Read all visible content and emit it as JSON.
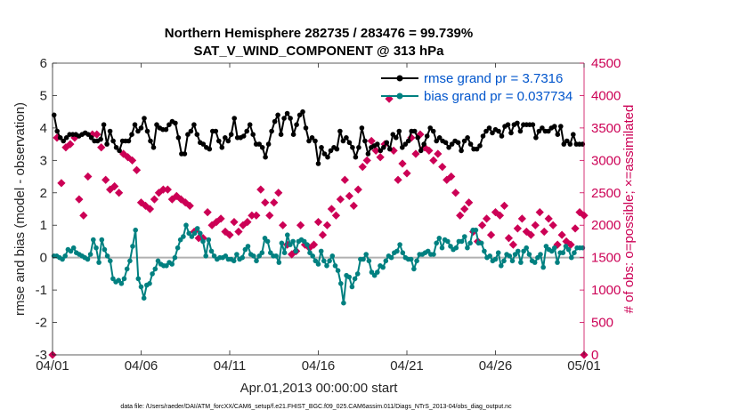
{
  "chart_data": {
    "type": "line",
    "title": "Northern Hemisphere 282735 / 283476 = 99.739%",
    "subtitle": "SAT_V_WIND_COMPONENT @ 313 hPa",
    "xlabel": "Apr.01,2013 00:00:00 start",
    "ylabel_left": "rmse and bias (model - observation)",
    "ylabel_right": "# of obs: o=possible; ×=assimilated",
    "footer": "data file: /Users/raeder/DAI/ATM_forcXX/CAM6_setup/f.e21.FHIST_BGC.f09_025.CAM6assim.011/Diags_NTrS_2013-04/obs_diag_output.nc",
    "xlim": [
      0,
      30
    ],
    "ylim_left": [
      -3,
      6
    ],
    "ylim_right": [
      0,
      4500
    ],
    "x_ticks": [
      0,
      5,
      10,
      15,
      20,
      25,
      30
    ],
    "x_tick_labels": [
      "04/01",
      "04/06",
      "04/11",
      "04/16",
      "04/21",
      "04/26",
      "05/01"
    ],
    "y_ticks_left": [
      "-3",
      "-2",
      "-1",
      "0",
      "1",
      "2",
      "3",
      "4",
      "5",
      "6"
    ],
    "y_ticks_right": [
      "0",
      "500",
      "1000",
      "1500",
      "2000",
      "2500",
      "3000",
      "3500",
      "4000",
      "4500"
    ],
    "colors": {
      "rmse": "#000000",
      "bias": "#008080",
      "obs": "#cc0055",
      "zero_line": "#b0b0b0",
      "legend_text": "#0055cc"
    },
    "legend": {
      "position": "top-right",
      "items": [
        {
          "series": "rmse",
          "label": "rmse grand pr = 3.7316"
        },
        {
          "series": "bias",
          "label": "bias grand pr = 0.037734"
        }
      ]
    },
    "series": [
      {
        "name": "rmse",
        "axis": "left",
        "values": [
          4.4,
          3.9,
          3.7,
          3.6,
          3.7,
          3.8,
          3.8,
          3.8,
          3.75,
          3.8,
          3.85,
          3.8,
          3.7,
          3.6,
          3.6,
          3.65,
          4.1,
          3.5,
          3.9,
          3.6,
          3.4,
          3.3,
          3.6,
          3.6,
          3.6,
          3.8,
          4.1,
          3.9,
          4.0,
          4.3,
          3.9,
          3.6,
          3.4,
          4.1,
          4.0,
          3.95,
          3.95,
          4.1,
          4.2,
          4.15,
          3.7,
          3.2,
          3.2,
          3.8,
          3.9,
          4.1,
          3.8,
          3.55,
          3.5,
          3.4,
          3.35,
          3.9,
          3.9,
          3.6,
          3.4,
          3.7,
          3.6,
          3.8,
          4.3,
          3.7,
          3.7,
          3.75,
          3.9,
          4.1,
          3.8,
          3.5,
          3.5,
          3.4,
          3.1,
          3.5,
          3.9,
          4.2,
          4.4,
          3.8,
          4.3,
          4.45,
          4.3,
          3.8,
          4.1,
          4.4,
          4.5,
          4.0,
          3.6,
          3.7,
          3.6,
          2.9,
          3.4,
          3.2,
          3.1,
          3.3,
          3.4,
          3.35,
          3.9,
          3.6,
          3.7,
          3.55,
          3.4,
          3.1,
          3.4,
          4.0,
          3.6,
          3.2,
          3.4,
          3.45,
          3.5,
          3.3,
          3.4,
          3.55,
          3.35,
          3.8,
          3.7,
          3.9,
          3.4,
          3.5,
          3.6,
          3.9,
          3.9,
          3.7,
          3.3,
          3.5,
          3.75,
          4.0,
          3.9,
          3.6,
          3.7,
          3.6,
          3.55,
          3.4,
          3.5,
          3.6,
          3.55,
          3.3,
          3.6,
          3.7,
          3.5,
          3.35,
          3.35,
          3.45,
          3.75,
          3.9,
          4.0,
          3.85,
          3.95,
          3.9,
          3.75,
          4.05,
          4.1,
          3.85,
          4.1,
          4.15,
          3.9,
          4.1,
          4.1,
          4.1,
          4.1,
          3.7,
          3.9,
          4.0,
          3.9,
          3.9,
          4.0,
          4.05,
          3.8,
          4.05,
          3.5,
          3.6,
          3.5,
          3.8,
          3.5,
          3.5,
          3.5
        ]
      },
      {
        "name": "bias",
        "axis": "left",
        "values": [
          0.05,
          0.05,
          0.0,
          -0.05,
          0.05,
          0.25,
          0.2,
          0.3,
          0.15,
          0.1,
          0.05,
          0.0,
          -0.05,
          0.1,
          0.55,
          0.3,
          -0.15,
          0.55,
          0.25,
          0.05,
          -0.1,
          -0.65,
          -0.75,
          -0.7,
          -0.8,
          -0.65,
          -0.35,
          -0.1,
          0.35,
          0.85,
          -0.65,
          -0.9,
          -1.25,
          -0.85,
          -0.8,
          -0.5,
          -0.35,
          -0.1,
          -0.2,
          -0.25,
          -0.25,
          -0.15,
          -0.2,
          0.0,
          0.3,
          0.55,
          0.65,
          1.0,
          0.75,
          0.65,
          0.75,
          0.9,
          0.75,
          0.5,
          0.05,
          0.55,
          0.2,
          0.05,
          -0.05,
          0.0,
          0.0,
          0.05,
          -0.05,
          -0.05,
          -0.1,
          0.1,
          -0.05,
          0.0,
          0.25,
          0.35,
          0.1,
          0.05,
          -0.1,
          0.05,
          0.15,
          0.6,
          0.5,
          0.15,
          0.05,
          0.05,
          -0.15,
          0.45,
          0.15,
          0.7,
          0.4,
          0.5,
          0.2,
          0.5,
          0.55,
          0.5,
          0.4,
          0.15,
          0.05,
          -0.1,
          -0.2,
          0.2,
          -0.1,
          -0.25,
          -0.1,
          0.05,
          -0.25,
          -0.4,
          -0.8,
          -1.4,
          -0.55,
          -0.6,
          -0.9,
          -0.65,
          -0.5,
          -0.05,
          -0.05,
          0.1,
          -0.1,
          -0.45,
          -0.55,
          -0.45,
          -0.25,
          -0.3,
          -0.1,
          0.05,
          0.0,
          0.15,
          0.2,
          0.4,
          0.15,
          0.0,
          -0.05,
          -0.05,
          -0.35,
          -0.1,
          0.1,
          0.1,
          0.15,
          0.2,
          0.1,
          0.1,
          0.45,
          0.6,
          0.3,
          0.55,
          0.5,
          0.35,
          0.25,
          0.3,
          0.5,
          0.5,
          0.65,
          0.3,
          0.45,
          0.85,
          0.85,
          0.45,
          0.45,
          0.2,
          0.0,
          0.05,
          -0.1,
          -0.05,
          0.15,
          -0.25,
          -0.1,
          0.1,
          0.05,
          -0.1,
          0.1,
          0.2,
          -0.15,
          0.2,
          0.3,
          0.1,
          -0.1,
          -0.15,
          0.0,
          0.1,
          -0.3,
          0.35,
          0.25,
          0.2,
          0.3,
          -0.15,
          0.15,
          0.15,
          0.35,
          0.25,
          0.0,
          0.15,
          0.3,
          0.3,
          0.3
        ]
      },
      {
        "name": "obs_assimilated",
        "axis": "right",
        "points": [
          [
            0.25,
            3350
          ],
          [
            0.5,
            2650
          ],
          [
            0.75,
            3200
          ],
          [
            1.0,
            3250
          ],
          [
            1.25,
            3350
          ],
          [
            1.5,
            2400
          ],
          [
            1.75,
            2150
          ],
          [
            2.0,
            2750
          ],
          [
            2.25,
            3400
          ],
          [
            2.5,
            3400
          ],
          [
            2.75,
            3200
          ],
          [
            3.0,
            2700
          ],
          [
            3.25,
            2550
          ],
          [
            3.5,
            2600
          ],
          [
            3.75,
            2500
          ],
          [
            4.0,
            3100
          ],
          [
            4.25,
            3050
          ],
          [
            4.5,
            3000
          ],
          [
            4.75,
            2850
          ],
          [
            5.0,
            2350
          ],
          [
            5.25,
            2300
          ],
          [
            5.5,
            2250
          ],
          [
            5.75,
            2400
          ],
          [
            6.0,
            2500
          ],
          [
            6.25,
            2550
          ],
          [
            6.5,
            2550
          ],
          [
            6.75,
            2400
          ],
          [
            7.0,
            2450
          ],
          [
            7.25,
            2400
          ],
          [
            7.5,
            2350
          ],
          [
            7.75,
            2300
          ],
          [
            8.0,
            1900
          ],
          [
            8.25,
            1800
          ],
          [
            8.5,
            1800
          ],
          [
            8.75,
            2200
          ],
          [
            9.0,
            2000
          ],
          [
            9.25,
            2050
          ],
          [
            9.5,
            2100
          ],
          [
            9.75,
            1900
          ],
          [
            10.0,
            1850
          ],
          [
            10.25,
            2050
          ],
          [
            10.5,
            1900
          ],
          [
            10.75,
            2000
          ],
          [
            11.0,
            2050
          ],
          [
            11.25,
            2150
          ],
          [
            11.5,
            2150
          ],
          [
            11.75,
            2550
          ],
          [
            12.0,
            2350
          ],
          [
            12.25,
            2150
          ],
          [
            12.5,
            2350
          ],
          [
            12.75,
            2500
          ],
          [
            13.0,
            2000
          ],
          [
            13.25,
            1700
          ],
          [
            13.5,
            1550
          ],
          [
            13.75,
            1600
          ],
          [
            14.0,
            2000
          ],
          [
            14.25,
            1700
          ],
          [
            14.5,
            1650
          ],
          [
            14.75,
            1700
          ],
          [
            15.0,
            2050
          ],
          [
            15.25,
            1850
          ],
          [
            15.5,
            2000
          ],
          [
            15.75,
            2250
          ],
          [
            16.0,
            2150
          ],
          [
            16.25,
            2400
          ],
          [
            16.5,
            2700
          ],
          [
            16.75,
            2450
          ],
          [
            17.0,
            2300
          ],
          [
            17.25,
            2550
          ],
          [
            17.5,
            2900
          ],
          [
            17.75,
            3000
          ],
          [
            18.0,
            3300
          ],
          [
            18.25,
            3150
          ],
          [
            18.5,
            3050
          ],
          [
            18.75,
            3250
          ],
          [
            19.0,
            3950
          ],
          [
            19.25,
            3150
          ],
          [
            19.5,
            2700
          ],
          [
            19.75,
            2950
          ],
          [
            20.0,
            2800
          ],
          [
            20.25,
            3350
          ],
          [
            20.5,
            3100
          ],
          [
            20.75,
            3400
          ],
          [
            21.0,
            3200
          ],
          [
            21.25,
            3150
          ],
          [
            21.5,
            3000
          ],
          [
            21.75,
            3100
          ],
          [
            22.0,
            2900
          ],
          [
            22.25,
            2700
          ],
          [
            22.5,
            2750
          ],
          [
            22.75,
            2500
          ],
          [
            23.0,
            2150
          ],
          [
            23.25,
            2250
          ],
          [
            23.5,
            2350
          ],
          [
            23.75,
            1900
          ],
          [
            24.0,
            1750
          ],
          [
            24.25,
            2000
          ],
          [
            24.5,
            2100
          ],
          [
            24.75,
            1850
          ],
          [
            25.0,
            2200
          ],
          [
            25.25,
            2150
          ],
          [
            25.5,
            2300
          ],
          [
            25.75,
            1800
          ],
          [
            26.0,
            1700
          ],
          [
            26.25,
            1950
          ],
          [
            26.5,
            2100
          ],
          [
            26.75,
            1900
          ],
          [
            27.0,
            1850
          ],
          [
            27.25,
            2000
          ],
          [
            27.5,
            2200
          ],
          [
            27.75,
            1900
          ],
          [
            28.0,
            2100
          ],
          [
            28.25,
            2000
          ],
          [
            28.5,
            1700
          ],
          [
            28.75,
            1850
          ],
          [
            29.0,
            1750
          ],
          [
            29.25,
            1700
          ],
          [
            29.5,
            1950
          ],
          [
            29.75,
            2200
          ],
          [
            30.0,
            2150
          ],
          [
            0.0,
            0
          ],
          [
            30.0,
            0
          ]
        ]
      }
    ]
  }
}
